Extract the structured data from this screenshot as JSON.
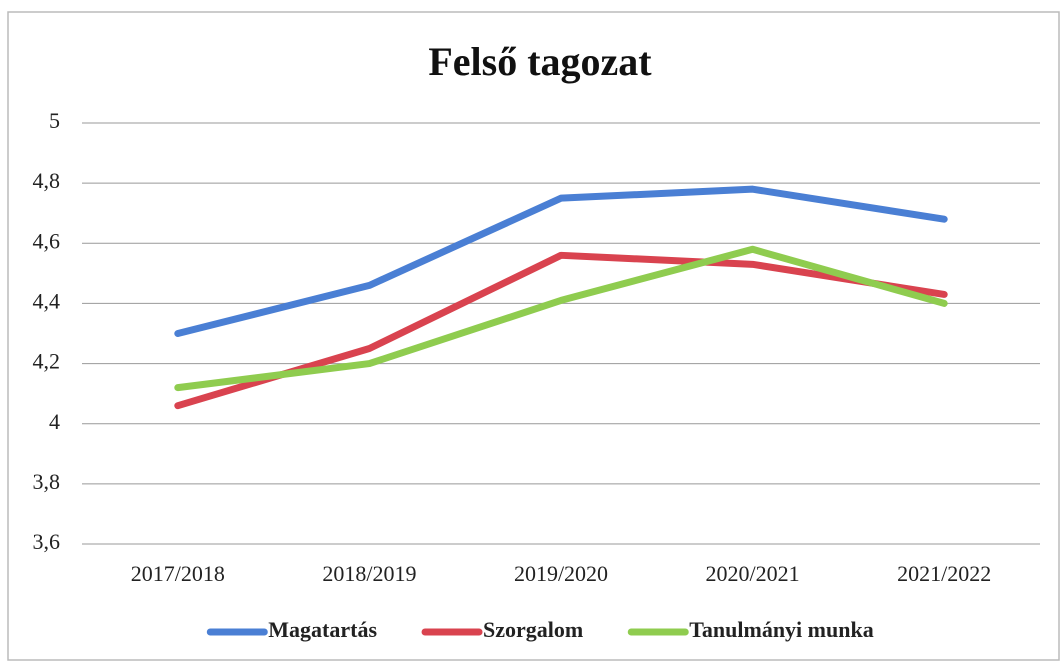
{
  "chart_data": {
    "type": "line",
    "title": "Felső tagozat",
    "categories": [
      "2017/2018",
      "2018/2019",
      "2019/2020",
      "2020/2021",
      "2021/2022"
    ],
    "series": [
      {
        "name": "Magatartás",
        "color": "#4a7fd4",
        "values": [
          4.3,
          4.46,
          4.75,
          4.78,
          4.68
        ]
      },
      {
        "name": "Szorgalom",
        "color": "#d9434f",
        "values": [
          4.06,
          4.25,
          4.56,
          4.53,
          4.43
        ]
      },
      {
        "name": "Tanulmányi munka",
        "color": "#8fcc4f",
        "values": [
          4.12,
          4.2,
          4.41,
          4.58,
          4.4
        ]
      }
    ],
    "ylim": [
      3.6,
      5
    ],
    "yticks": [
      {
        "value": 3.6,
        "label": "3,6"
      },
      {
        "value": 3.8,
        "label": "3,8"
      },
      4,
      {
        "value": 4.2,
        "label": "4,2"
      },
      {
        "value": 4.4,
        "label": "4,4"
      },
      {
        "value": 4.6,
        "label": "4,6"
      },
      {
        "value": 4.8,
        "label": "4,8"
      },
      5
    ],
    "grid": true,
    "legend": "bottom"
  }
}
